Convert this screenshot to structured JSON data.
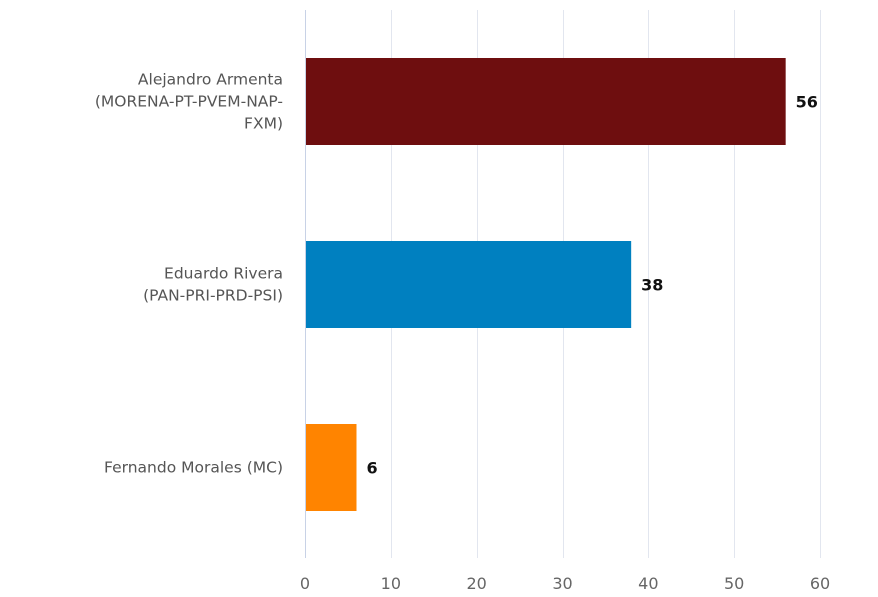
{
  "chart_data": {
    "type": "bar",
    "orientation": "horizontal",
    "categories": [
      [
        "Alejandro Armenta",
        "(MORENA-PT-PVEM-NAP-",
        "FXM)"
      ],
      [
        "Eduardo Rivera",
        "(PAN-PRI-PRD-PSI)"
      ],
      [
        "Fernando Morales (MC)"
      ]
    ],
    "values": [
      56,
      38,
      6
    ],
    "colors": [
      "#6e0e0f",
      "#0080c0",
      "#ff8400"
    ],
    "data_labels": [
      "56",
      "38",
      "6"
    ],
    "xlim": [
      0,
      60
    ],
    "x_ticks": [
      0,
      10,
      20,
      30,
      40,
      50,
      60
    ],
    "x_tick_labels": [
      "0",
      "10",
      "20",
      "30",
      "40",
      "50",
      "60"
    ],
    "grid": true,
    "legend": "none"
  }
}
